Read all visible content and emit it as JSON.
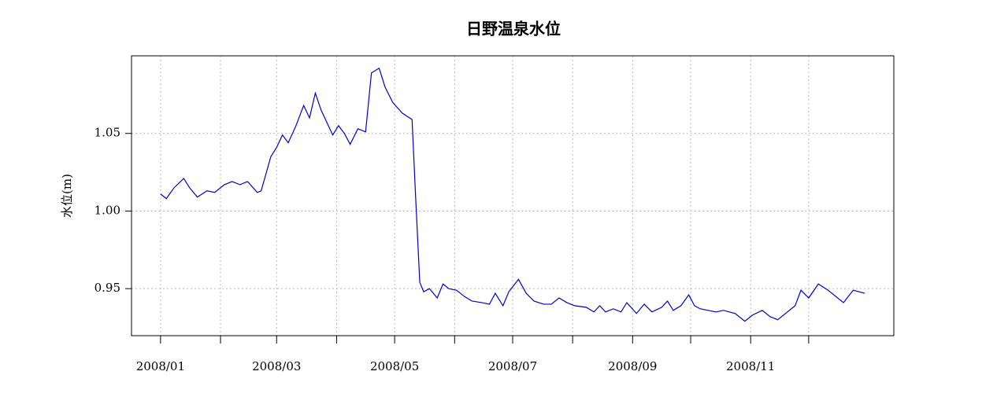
{
  "chart_data": {
    "type": "line",
    "title": "日野温泉水位",
    "y_label": "水位(m)",
    "x": [
      1,
      4,
      8,
      13,
      16,
      20,
      25,
      29,
      34,
      38,
      42,
      46,
      51,
      53,
      58,
      61,
      64,
      67,
      71,
      75,
      78,
      81,
      84,
      90,
      93,
      96,
      99,
      103,
      107,
      110,
      114,
      117,
      121,
      126,
      131,
      133,
      135,
      137,
      140,
      144,
      147,
      150,
      154,
      158,
      162,
      167,
      171,
      174,
      178,
      181,
      186,
      190,
      194,
      199,
      203,
      207,
      211,
      215,
      221,
      225,
      228,
      231,
      235,
      239,
      242,
      247,
      251,
      255,
      260,
      263,
      266,
      270,
      274,
      277,
      280,
      284,
      288,
      292,
      298,
      303,
      307,
      312,
      316,
      320,
      325,
      329,
      332,
      336,
      341,
      346,
      349,
      354,
      359,
      365
    ],
    "series": [
      {
        "color": "#0000cc",
        "values": [
          1.011,
          1.008,
          1.015,
          1.021,
          1.015,
          1.009,
          1.013,
          1.012,
          1.017,
          1.019,
          1.017,
          1.019,
          1.012,
          1.013,
          1.035,
          1.041,
          1.049,
          1.044,
          1.055,
          1.068,
          1.06,
          1.076,
          1.065,
          1.049,
          1.055,
          1.05,
          1.043,
          1.053,
          1.051,
          1.089,
          1.092,
          1.08,
          1.07,
          1.063,
          1.059,
          1.005,
          0.954,
          0.948,
          0.95,
          0.944,
          0.953,
          0.95,
          0.949,
          0.945,
          0.942,
          0.941,
          0.94,
          0.947,
          0.939,
          0.948,
          0.956,
          0.947,
          0.942,
          0.94,
          0.94,
          0.944,
          0.941,
          0.939,
          0.938,
          0.935,
          0.939,
          0.935,
          0.937,
          0.935,
          0.941,
          0.934,
          0.94,
          0.935,
          0.938,
          0.942,
          0.936,
          0.939,
          0.946,
          0.939,
          0.937,
          0.936,
          0.935,
          0.936,
          0.934,
          0.929,
          0.933,
          0.936,
          0.932,
          0.93,
          0.935,
          0.939,
          0.949,
          0.944,
          0.953,
          0.949,
          0.946,
          0.941,
          0.949,
          0.947
        ]
      }
    ],
    "xlim": [
      -14,
      380
    ],
    "ylim": [
      0.9197,
      1.1
    ],
    "xticks": [
      {
        "value": 1,
        "label": "2008/01"
      },
      {
        "value": 32,
        "label": null
      },
      {
        "value": 61,
        "label": "2008/03"
      },
      {
        "value": 92,
        "label": null
      },
      {
        "value": 122,
        "label": "2008/05"
      },
      {
        "value": 153,
        "label": null
      },
      {
        "value": 183,
        "label": "2008/07"
      },
      {
        "value": 214,
        "label": null
      },
      {
        "value": 245,
        "label": "2008/09"
      },
      {
        "value": 275,
        "label": null
      },
      {
        "value": 306,
        "label": "2008/11"
      },
      {
        "value": 336,
        "label": null
      }
    ],
    "yticks": [
      0.95,
      {
        "value": 1.0,
        "label": "1.00"
      },
      1.05
    ],
    "grid": true
  }
}
